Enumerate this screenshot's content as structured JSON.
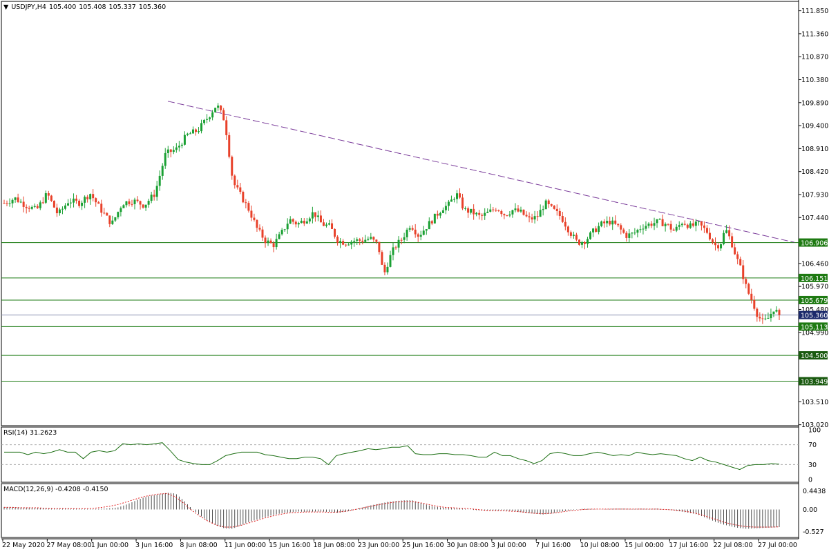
{
  "header": {
    "symbol": "USDJPY,H4",
    "open": "105.400",
    "high": "105.408",
    "low": "105.337",
    "close": "105.360"
  },
  "colors": {
    "bull": "#1aa033",
    "bear": "#e8412a",
    "hline": "#1a7a10",
    "trend": "#7a3b9a",
    "rsi": "#1b6e12",
    "macd_signal": "#e22020",
    "grid": "#000000",
    "current_price_bg": "#1b2a6b",
    "level_label_bg": "#1e7a12"
  },
  "rsi_panel": {
    "label": "RSI(14) 31.2623",
    "ticks": [
      "100",
      "70",
      "30",
      "0"
    ]
  },
  "macd_panel": {
    "label": "MACD(12,26,9) -0.4208 -0.4150",
    "ticks": [
      "0.4438",
      "0.00",
      "-0.527"
    ]
  },
  "price_axis_ticks": [
    "111.850",
    "111.360",
    "110.870",
    "110.380",
    "109.890",
    "109.400",
    "108.910",
    "108.420",
    "107.930",
    "107.440",
    "106.460",
    "105.970",
    "105.480",
    "104.990",
    "103.510",
    "103.020"
  ],
  "level_labels": [
    "106.906",
    "106.151",
    "105.679",
    "105.113",
    "104.500",
    "103.949"
  ],
  "current_price_label": "105.360",
  "time_labels": [
    "22 May 2020",
    "27 May 08:00",
    "1 Jun 00:00",
    "3 Jun 16:00",
    "8 Jun 08:00",
    "11 Jun 00:00",
    "15 Jun 16:00",
    "18 Jun 08:00",
    "23 Jun 00:00",
    "25 Jun 16:00",
    "30 Jun 08:00",
    "3 Jul 00:00",
    "7 Jul 16:00",
    "10 Jul 08:00",
    "15 Jul 00:00",
    "17 Jul 16:00",
    "22 Jul 08:00",
    "27 Jul 00:00"
  ],
  "chart_data": {
    "type": "candlestick",
    "symbol": "USDJPY",
    "timeframe": "H4",
    "ylim": [
      103.0,
      112.05
    ],
    "horizontal_levels": [
      106.906,
      106.151,
      105.679,
      105.113,
      104.5,
      103.949
    ],
    "current_price": 105.36,
    "trendline": {
      "from": {
        "x": "5 Jun 2020",
        "y": 109.92
      },
      "to": {
        "x": "31 Jul 2020",
        "y": 106.91
      }
    },
    "close_path": [
      [
        0,
        107.75
      ],
      [
        8,
        107.85
      ],
      [
        16,
        107.7
      ],
      [
        24,
        107.6
      ],
      [
        32,
        107.95
      ],
      [
        40,
        107.5
      ],
      [
        48,
        107.8
      ],
      [
        56,
        107.75
      ],
      [
        64,
        107.95
      ],
      [
        72,
        107.6
      ],
      [
        80,
        107.3
      ],
      [
        88,
        107.75
      ],
      [
        96,
        107.8
      ],
      [
        104,
        107.7
      ],
      [
        112,
        107.95
      ],
      [
        120,
        108.8
      ],
      [
        128,
        108.9
      ],
      [
        136,
        109.2
      ],
      [
        144,
        109.3
      ],
      [
        152,
        109.6
      ],
      [
        158,
        109.85
      ],
      [
        164,
        109.5
      ],
      [
        170,
        108.2
      ],
      [
        176,
        107.9
      ],
      [
        182,
        107.6
      ],
      [
        188,
        107.2
      ],
      [
        194,
        106.95
      ],
      [
        200,
        106.85
      ],
      [
        206,
        107.1
      ],
      [
        212,
        107.4
      ],
      [
        218,
        107.3
      ],
      [
        224,
        107.4
      ],
      [
        230,
        107.55
      ],
      [
        236,
        107.3
      ],
      [
        242,
        107.25
      ],
      [
        248,
        106.95
      ],
      [
        254,
        106.9
      ],
      [
        260,
        106.95
      ],
      [
        266,
        106.95
      ],
      [
        272,
        107.0
      ],
      [
        278,
        106.85
      ],
      [
        282,
        106.2
      ],
      [
        286,
        106.55
      ],
      [
        290,
        106.8
      ],
      [
        296,
        107.0
      ],
      [
        302,
        107.3
      ],
      [
        308,
        107.05
      ],
      [
        314,
        107.25
      ],
      [
        320,
        107.45
      ],
      [
        326,
        107.65
      ],
      [
        330,
        107.7
      ],
      [
        336,
        107.95
      ],
      [
        342,
        107.6
      ],
      [
        348,
        107.55
      ],
      [
        354,
        107.45
      ],
      [
        360,
        107.55
      ],
      [
        366,
        107.65
      ],
      [
        372,
        107.5
      ],
      [
        378,
        107.6
      ],
      [
        384,
        107.55
      ],
      [
        390,
        107.4
      ],
      [
        396,
        107.45
      ],
      [
        402,
        107.75
      ],
      [
        408,
        107.6
      ],
      [
        414,
        107.45
      ],
      [
        420,
        107.15
      ],
      [
        426,
        106.9
      ],
      [
        432,
        106.95
      ],
      [
        438,
        107.15
      ],
      [
        444,
        107.3
      ],
      [
        450,
        107.35
      ],
      [
        456,
        107.25
      ],
      [
        462,
        107.05
      ],
      [
        468,
        107.1
      ],
      [
        474,
        107.25
      ],
      [
        480,
        107.3
      ],
      [
        486,
        107.35
      ],
      [
        492,
        107.3
      ],
      [
        498,
        107.15
      ],
      [
        504,
        107.35
      ],
      [
        510,
        107.25
      ],
      [
        516,
        107.3
      ],
      [
        522,
        107.15
      ],
      [
        528,
        106.85
      ],
      [
        532,
        106.85
      ],
      [
        536,
        107.2
      ],
      [
        540,
        106.95
      ],
      [
        544,
        106.6
      ],
      [
        548,
        106.3
      ],
      [
        552,
        105.9
      ],
      [
        556,
        105.65
      ],
      [
        560,
        105.35
      ],
      [
        564,
        105.2
      ],
      [
        568,
        105.3
      ],
      [
        572,
        105.5
      ],
      [
        576,
        105.36
      ]
    ],
    "rsi": {
      "period": 14,
      "value": 31.2623,
      "levels": [
        70,
        30
      ],
      "ylim": [
        0,
        100
      ],
      "values": [
        55,
        55,
        55,
        50,
        55,
        52,
        55,
        60,
        55,
        55,
        42,
        55,
        58,
        55,
        58,
        72,
        70,
        72,
        70,
        72,
        74,
        58,
        40,
        35,
        32,
        30,
        30,
        38,
        48,
        52,
        55,
        55,
        55,
        50,
        48,
        45,
        42,
        42,
        45,
        45,
        42,
        30,
        48,
        52,
        55,
        58,
        62,
        60,
        62,
        65,
        65,
        68,
        52,
        50,
        50,
        52,
        52,
        50,
        50,
        48,
        45,
        45,
        55,
        48,
        48,
        42,
        38,
        32,
        38,
        52,
        55,
        52,
        48,
        48,
        52,
        55,
        52,
        48,
        50,
        48,
        55,
        52,
        50,
        52,
        50,
        48,
        42,
        38,
        45,
        38,
        35,
        30,
        25,
        20,
        28,
        30,
        30,
        32,
        31
      ]
    },
    "macd": {
      "params": [
        12,
        26,
        9
      ],
      "main": -0.4208,
      "signal": -0.415,
      "ylim": [
        -0.6,
        0.55
      ],
      "hist": [
        0.06,
        0.06,
        0.05,
        0.05,
        0.04,
        0.04,
        0.03,
        0.03,
        0.03,
        0.02,
        0.01,
        0.01,
        0.02,
        0.03,
        0.05,
        0.12,
        0.2,
        0.28,
        0.33,
        0.36,
        0.4,
        0.38,
        0.22,
        0.02,
        -0.14,
        -0.28,
        -0.38,
        -0.45,
        -0.46,
        -0.38,
        -0.3,
        -0.24,
        -0.18,
        -0.13,
        -0.09,
        -0.07,
        -0.05,
        -0.06,
        -0.05,
        -0.05,
        -0.06,
        -0.08,
        -0.05,
        0.0,
        0.05,
        0.1,
        0.14,
        0.18,
        0.2,
        0.22,
        0.22,
        0.16,
        0.1,
        0.06,
        0.04,
        0.03,
        0.02,
        0.0,
        -0.02,
        -0.03,
        -0.03,
        -0.02,
        -0.03,
        -0.06,
        -0.08,
        -0.1,
        -0.12,
        -0.1,
        -0.06,
        -0.03,
        -0.01,
        0.02,
        0.01,
        0.0,
        0.01,
        0.02,
        0.02,
        0.01,
        0.02,
        0.01,
        0.02,
        0.0,
        -0.02,
        -0.05,
        -0.08,
        -0.12,
        -0.2,
        -0.28,
        -0.35,
        -0.4,
        -0.44,
        -0.46,
        -0.45,
        -0.44,
        -0.43,
        -0.42
      ],
      "signal_values": [
        0.05,
        0.05,
        0.04,
        0.04,
        0.04,
        0.03,
        0.02,
        0.02,
        0.02,
        0.02,
        0.02,
        0.03,
        0.05,
        0.08,
        0.12,
        0.18,
        0.24,
        0.3,
        0.34,
        0.37,
        0.38,
        0.3,
        0.15,
        -0.02,
        -0.16,
        -0.28,
        -0.37,
        -0.42,
        -0.42,
        -0.38,
        -0.32,
        -0.26,
        -0.2,
        -0.15,
        -0.11,
        -0.08,
        -0.07,
        -0.06,
        -0.06,
        -0.06,
        -0.07,
        -0.06,
        -0.04,
        0.0,
        0.04,
        0.08,
        0.12,
        0.15,
        0.18,
        0.19,
        0.19,
        0.16,
        0.12,
        0.08,
        0.05,
        0.04,
        0.03,
        0.02,
        0.0,
        -0.02,
        -0.03,
        -0.03,
        -0.04,
        -0.05,
        -0.07,
        -0.09,
        -0.1,
        -0.09,
        -0.07,
        -0.04,
        -0.02,
        0.0,
        0.01,
        0.01,
        0.01,
        0.01,
        0.01,
        0.01,
        0.01,
        0.01,
        0.01,
        0.0,
        -0.01,
        -0.03,
        -0.06,
        -0.1,
        -0.16,
        -0.22,
        -0.29,
        -0.34,
        -0.38,
        -0.41,
        -0.42,
        -0.42,
        -0.42,
        -0.415
      ]
    }
  }
}
